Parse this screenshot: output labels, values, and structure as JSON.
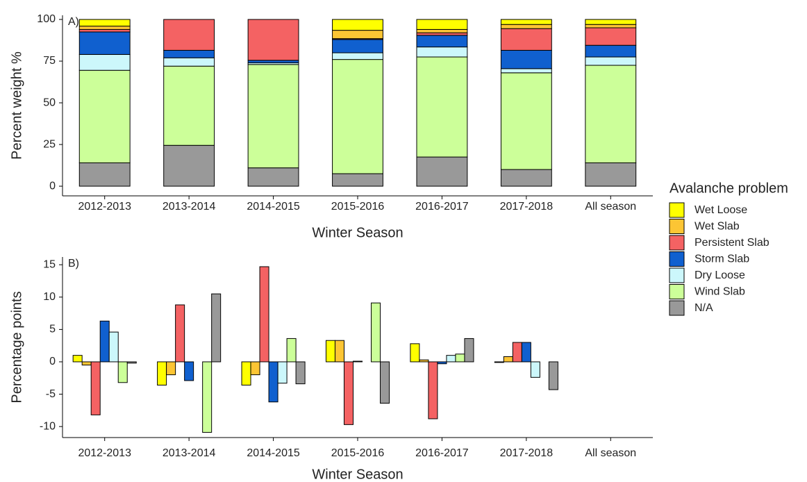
{
  "chart_data": [
    {
      "type": "bar",
      "stacked": true,
      "label": "A)",
      "x_label": "Winter Season",
      "y_label": "Percent weight %",
      "legend_title": "Avalanche problem",
      "categories": [
        "2012-2013",
        "2013-2014",
        "2014-2015",
        "2015-2016",
        "2016-2017",
        "2017-2018",
        "All season"
      ],
      "ylim": [
        -5.8,
        102.5
      ],
      "yticks": [
        0,
        25,
        50,
        75,
        100
      ],
      "series": [
        {
          "name": "Wet Loose",
          "color": "#ffff00",
          "values": [
            4,
            0,
            0,
            6.5,
            6,
            3,
            3
          ]
        },
        {
          "name": "Wet Slab",
          "color": "#fcc534",
          "values": [
            2,
            0,
            0,
            5,
            2,
            2.5,
            2
          ]
        },
        {
          "name": "Persistent Slab",
          "color": "#f46263",
          "values": [
            1.5,
            18.5,
            24.5,
            0.5,
            1.5,
            13,
            10.5
          ]
        },
        {
          "name": "Storm Slab",
          "color": "#1060cf",
          "values": [
            13.5,
            4.5,
            1.5,
            8,
            7,
            11,
            7
          ]
        },
        {
          "name": "Dry Loose",
          "color": "#ccf7fb",
          "values": [
            9.5,
            5,
            1,
            4,
            6,
            2.5,
            5
          ]
        },
        {
          "name": "Wind Slab",
          "color": "#ccff99",
          "values": [
            55.5,
            47.5,
            62,
            68.5,
            60,
            58,
            58.5
          ]
        },
        {
          "name": "N/A",
          "color": "#999999",
          "values": [
            14,
            24.5,
            11,
            7.5,
            17.5,
            10,
            14
          ]
        }
      ]
    },
    {
      "type": "bar",
      "stacked": false,
      "label": "B)",
      "x_label": "Winter Season",
      "y_label": "Percentage points",
      "categories": [
        "2012-2013",
        "2013-2014",
        "2014-2015",
        "2015-2016",
        "2016-2017",
        "2017-2018",
        "All season"
      ],
      "ylim": [
        -11.7,
        16.2
      ],
      "yticks": [
        -10,
        -5,
        0,
        5,
        10,
        15
      ],
      "series": [
        {
          "name": "Wet Loose",
          "color": "#ffff00",
          "values": [
            1,
            -3.6,
            -3.6,
            3.3,
            2.8,
            -0.1,
            0
          ]
        },
        {
          "name": "Wet Slab",
          "color": "#fcc534",
          "values": [
            -0.5,
            -2,
            -2,
            3.3,
            0.3,
            0.8,
            0
          ]
        },
        {
          "name": "Persistent Slab",
          "color": "#f46263",
          "values": [
            -8.2,
            8.8,
            14.7,
            -9.7,
            -8.8,
            3,
            0
          ]
        },
        {
          "name": "Storm Slab",
          "color": "#1060cf",
          "values": [
            6.3,
            -2.9,
            -6.2,
            0.1,
            -0.3,
            3,
            0
          ]
        },
        {
          "name": "Dry Loose",
          "color": "#ccf7fb",
          "values": [
            4.6,
            0,
            -3.3,
            0,
            1,
            -2.4,
            0
          ]
        },
        {
          "name": "Wind Slab",
          "color": "#ccff99",
          "values": [
            -3.2,
            -10.9,
            3.6,
            9.1,
            1.2,
            0,
            0
          ]
        },
        {
          "name": "N/A",
          "color": "#999999",
          "values": [
            -0.2,
            10.5,
            -3.4,
            -6.4,
            3.6,
            -4.3,
            0
          ]
        }
      ]
    }
  ]
}
